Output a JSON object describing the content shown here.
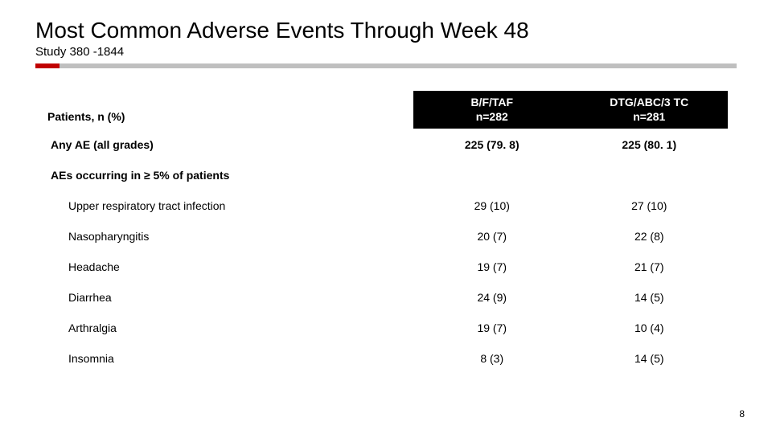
{
  "title": "Most Common Adverse Events Through Week 48",
  "subtitle": "Study 380 -1844",
  "page_number": "8",
  "table": {
    "row_header": "Patients, n (%)",
    "columns": [
      {
        "line1": "B/F/TAF",
        "line2": "n=282"
      },
      {
        "line1": "DTG/ABC/3 TC",
        "line2": "n=281"
      }
    ],
    "rows": [
      {
        "type": "bold",
        "label": "Any AE (all grades)",
        "c1": "225 (79. 8)",
        "c2": "225 (80. 1)"
      },
      {
        "type": "section",
        "label": "AEs occurring in ≥ 5% of patients",
        "c1": "",
        "c2": ""
      },
      {
        "type": "indent",
        "label": "Upper respiratory tract infection",
        "c1": "29 (10)",
        "c2": "27 (10)"
      },
      {
        "type": "indent",
        "label": "Nasopharyngitis",
        "c1": "20 (7)",
        "c2": "22 (8)"
      },
      {
        "type": "indent",
        "label": "Headache",
        "c1": "19 (7)",
        "c2": "21 (7)"
      },
      {
        "type": "indent",
        "label": "Diarrhea",
        "c1": "24 (9)",
        "c2": "14 (5)"
      },
      {
        "type": "indent",
        "label": "Arthralgia",
        "c1": "19 (7)",
        "c2": "10 (4)"
      },
      {
        "type": "indent",
        "label": "Insomnia",
        "c1": "8 (3)",
        "c2": "14 (5)"
      }
    ]
  },
  "colors": {
    "accent_red": "#c00000",
    "rule_gray": "#bfbfbf",
    "header_bg": "#000000",
    "header_fg": "#ffffff"
  }
}
